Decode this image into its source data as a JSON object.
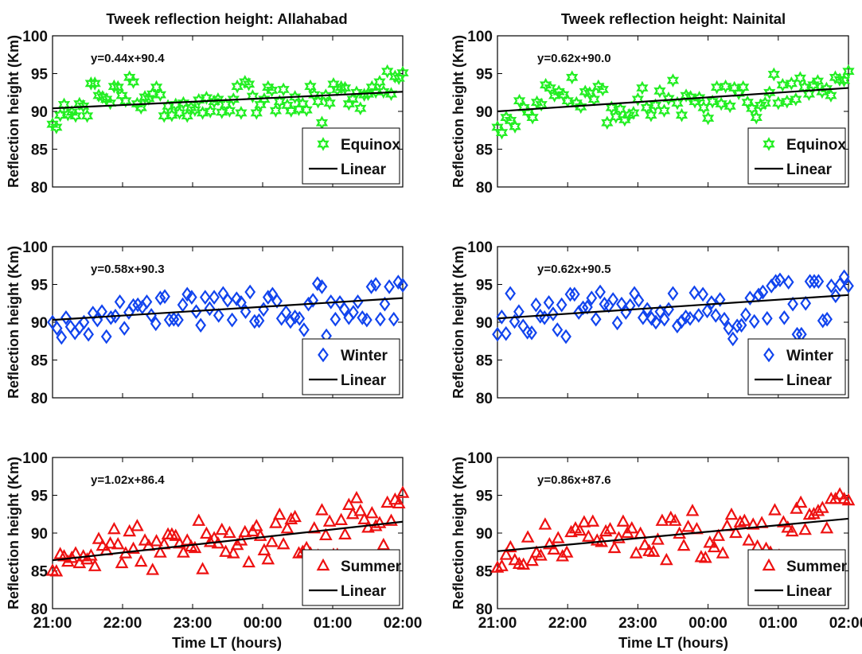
{
  "figure": {
    "titles": {
      "left": "Tweek reflection height: Allahabad",
      "right": "Tweek reflection height: Nainital"
    },
    "ylabel": "Reflection height (Km)",
    "xlabel": "Time LT (hours)",
    "x_tick_labels": [
      "21:00",
      "22:00",
      "23:00",
      "00:00",
      "01:00",
      "02:00"
    ],
    "y_tick_labels": [
      "80",
      "85",
      "90",
      "95",
      "100"
    ],
    "legend_fit_label": "Linear"
  },
  "chart_data": [
    {
      "type": "scatter",
      "title": "Tweek reflection height: Allahabad",
      "legend": "Equinox",
      "marker": "hexagram",
      "color": "#22ee22",
      "equation": "y=0.44x+90.4",
      "fit": {
        "slope": 0.44,
        "intercept": 90.4
      },
      "xlim": [
        0,
        5
      ],
      "ylim": [
        80,
        100
      ],
      "x_tick_labels": [
        "21:00",
        "22:00",
        "23:00",
        "00:00",
        "01:00",
        "02:00"
      ],
      "xlabel": "",
      "ylabel": "Reflection height (Km)",
      "legend_position": "bottom-right",
      "grid": false,
      "y": [
        88.3,
        87.9,
        89.5,
        90.9,
        89.6,
        89.9,
        89.4,
        91.0,
        90.7,
        89.4,
        93.7,
        93.7,
        92.1,
        91.9,
        91.6,
        91.1,
        93.3,
        93.2,
        92.1,
        91.4,
        94.5,
        93.9,
        91.0,
        90.5,
        91.9,
        91.7,
        92.3,
        93.2,
        92.2,
        89.4,
        90.7,
        89.5,
        90.9,
        89.8,
        91.1,
        89.4,
        90.5,
        90.2,
        91.5,
        89.8,
        91.8,
        90.0,
        91.3,
        91.6,
        89.9,
        90.9,
        90.1,
        91.6,
        93.3,
        89.8,
        93.9,
        93.6,
        92.0,
        89.8,
        90.9,
        91.6,
        93.2,
        92.8,
        90.1,
        91.3,
        92.9,
        90.8,
        90.1,
        91.9,
        90.3,
        91.0,
        90.2,
        93.3,
        92.2,
        91.3,
        88.5,
        92.1,
        91.1,
        93.6,
        92.9,
        93.2,
        93.1,
        91.0,
        91.6,
        92.5,
        90.4,
        92.2,
        92.3,
        93.2,
        92.6,
        93.9,
        92.6,
        95.3,
        92.3,
        94.6,
        94.4,
        95.1
      ]
    },
    {
      "type": "scatter",
      "title": "Tweek reflection height: Nainital",
      "legend": "Equinox",
      "marker": "hexagram",
      "color": "#22ee22",
      "equation": "y=0.62x+90.0",
      "fit": {
        "slope": 0.62,
        "intercept": 90.0
      },
      "xlim": [
        0,
        5
      ],
      "ylim": [
        80,
        100
      ],
      "x_tick_labels": [
        "21:00",
        "22:00",
        "23:00",
        "00:00",
        "01:00",
        "02:00"
      ],
      "xlabel": "",
      "ylabel": "Reflection height (Km)",
      "legend_position": "bottom-right",
      "grid": false,
      "y": [
        87.9,
        87.2,
        89.2,
        88.8,
        88.0,
        91.4,
        90.5,
        89.9,
        89.2,
        91.2,
        90.9,
        93.5,
        93.1,
        92.1,
        92.6,
        92.2,
        91.4,
        94.5,
        91.1,
        90.6,
        92.6,
        92.4,
        91.6,
        93.3,
        92.9,
        88.5,
        90.5,
        89.3,
        90.3,
        88.9,
        89.5,
        89.8,
        91.6,
        93.1,
        90.5,
        89.5,
        90.8,
        92.7,
        90.1,
        91.7,
        94.1,
        91.1,
        89.5,
        92.1,
        91.9,
        91.3,
        91.8,
        90.5,
        89.1,
        91.3,
        93.2,
        91.0,
        93.3,
        90.7,
        93.1,
        92.4,
        93.2,
        91.2,
        90.4,
        89.2,
        90.8,
        91.1,
        92.5,
        94.9,
        91.1,
        93.5,
        91.3,
        93.7,
        91.6,
        94.4,
        93.2,
        92.3,
        93.5,
        94.0,
        92.6,
        93.0,
        92.1,
        94.5,
        94.2,
        94.1,
        95.3
      ]
    },
    {
      "type": "scatter",
      "title": "",
      "legend": "Winter",
      "marker": "diamond",
      "color": "#1144ee",
      "equation": "y=0.58x+90.3",
      "fit": {
        "slope": 0.58,
        "intercept": 90.3
      },
      "xlim": [
        0,
        5
      ],
      "ylim": [
        80,
        100
      ],
      "x_tick_labels": [
        "21:00",
        "22:00",
        "23:00",
        "00:00",
        "01:00",
        "02:00"
      ],
      "xlabel": "",
      "ylabel": "Reflection height (Km)",
      "legend_position": "bottom-right",
      "grid": false,
      "y": [
        90.0,
        89.2,
        88.0,
        90.6,
        89.4,
        88.6,
        89.3,
        90.0,
        88.4,
        91.2,
        90.3,
        91.4,
        88.1,
        90.6,
        90.8,
        92.7,
        89.2,
        91.3,
        92.2,
        92.3,
        92.0,
        92.7,
        90.9,
        89.8,
        93.2,
        93.4,
        90.3,
        90.4,
        90.3,
        92.3,
        93.7,
        93.3,
        91.4,
        89.6,
        93.3,
        91.8,
        93.3,
        90.9,
        93.8,
        92.9,
        90.3,
        93.1,
        92.6,
        91.4,
        94.0,
        90.1,
        90.2,
        91.7,
        93.3,
        93.7,
        92.8,
        90.5,
        91.3,
        90.1,
        90.7,
        90.5,
        89.0,
        92.4,
        92.9,
        95.1,
        94.7,
        88.2,
        92.7,
        90.4,
        92.6,
        91.7,
        90.6,
        91.3,
        92.7,
        90.6,
        90.3,
        94.7,
        95.0,
        90.4,
        92.4,
        94.7,
        90.4,
        95.3,
        94.9
      ]
    },
    {
      "type": "scatter",
      "title": "",
      "legend": "Winter",
      "marker": "diamond",
      "color": "#1144ee",
      "equation": "y=0.62x+90.5",
      "fit": {
        "slope": 0.62,
        "intercept": 90.5
      },
      "xlim": [
        0,
        5
      ],
      "ylim": [
        80,
        100
      ],
      "x_tick_labels": [
        "21:00",
        "22:00",
        "23:00",
        "00:00",
        "01:00",
        "02:00"
      ],
      "xlabel": "",
      "ylabel": "Reflection height (Km)",
      "legend_position": "bottom-right",
      "grid": false,
      "y": [
        88.4,
        90.7,
        88.5,
        93.8,
        90.1,
        91.4,
        89.5,
        88.7,
        88.6,
        92.3,
        90.8,
        90.6,
        92.6,
        91.1,
        89.0,
        92.3,
        88.1,
        93.7,
        93.7,
        91.3,
        91.9,
        92.0,
        93.2,
        90.4,
        94.0,
        92.4,
        92.2,
        93.0,
        89.9,
        92.4,
        91.3,
        92.2,
        93.8,
        92.9,
        90.6,
        91.7,
        90.5,
        90.0,
        91.4,
        90.4,
        91.7,
        93.8,
        89.5,
        90.1,
        90.7,
        90.5,
        93.9,
        90.9,
        93.7,
        91.5,
        92.6,
        90.9,
        93.0,
        90.4,
        89.2,
        87.8,
        89.5,
        89.6,
        91.0,
        93.2,
        90.1,
        93.6,
        94.0,
        90.5,
        94.8,
        95.4,
        95.6,
        90.6,
        95.3,
        92.4,
        88.4,
        88.4,
        92.5,
        95.4,
        95.4,
        95.4,
        90.2,
        90.4,
        94.8,
        93.5,
        95.0,
        96.0,
        94.8
      ]
    },
    {
      "type": "scatter",
      "title": "",
      "legend": "Summer",
      "marker": "triangle",
      "color": "#ee1111",
      "equation": "y=1.02x+86.4",
      "fit": {
        "slope": 1.02,
        "intercept": 86.4
      },
      "xlim": [
        0,
        5
      ],
      "ylim": [
        80,
        100
      ],
      "x_tick_labels": [
        "21:00",
        "22:00",
        "23:00",
        "00:00",
        "01:00",
        "02:00"
      ],
      "xlabel": "Time LT (hours)",
      "ylabel": "Reflection height (Km)",
      "legend_position": "bottom-right",
      "grid": false,
      "y": [
        85.0,
        84.9,
        87.2,
        86.9,
        86.2,
        86.7,
        87.3,
        86.0,
        86.9,
        86.5,
        87.0,
        85.6,
        89.2,
        88.3,
        87.7,
        88.6,
        90.5,
        88.5,
        86.0,
        87.3,
        90.2,
        87.9,
        90.9,
        86.2,
        89.0,
        88.3,
        85.1,
        88.9,
        87.4,
        88.5,
        89.8,
        89.8,
        89.6,
        88.6,
        87.4,
        89.0,
        88.2,
        88.0,
        91.6,
        85.2,
        89.9,
        88.8,
        89.3,
        88.6,
        90.4,
        87.5,
        90.0,
        87.3,
        88.4,
        89.0,
        90.1,
        86.1,
        90.2,
        90.9,
        89.6,
        87.7,
        86.5,
        88.8,
        91.3,
        92.4,
        88.5,
        90.6,
        91.8,
        92.1,
        87.3,
        87.5,
        88.0,
        87.3,
        90.6,
        87.0,
        93.0,
        89.7,
        91.5,
        87.1,
        87.1,
        91.7,
        89.8,
        93.7,
        92.5,
        94.6,
        92.9,
        91.8,
        90.7,
        92.6,
        90.9,
        91.3,
        88.4,
        94.0,
        91.6,
        94.4,
        93.9,
        95.3
      ]
    },
    {
      "type": "scatter",
      "title": "",
      "legend": "Summer",
      "marker": "triangle",
      "color": "#ee1111",
      "equation": "y=0.86x+87.6",
      "fit": {
        "slope": 0.86,
        "intercept": 87.6
      },
      "xlim": [
        0,
        5
      ],
      "ylim": [
        80,
        100
      ],
      "x_tick_labels": [
        "21:00",
        "22:00",
        "23:00",
        "00:00",
        "01:00",
        "02:00"
      ],
      "xlabel": "Time LT (hours)",
      "ylabel": "Reflection height (Km)",
      "legend_position": "bottom-right",
      "grid": false,
      "y": [
        85.4,
        85.6,
        87.1,
        88.1,
        86.4,
        85.9,
        85.8,
        89.4,
        86.3,
        87.4,
        87.0,
        91.1,
        88.5,
        87.8,
        89.3,
        86.9,
        87.4,
        90.1,
        90.6,
        90.3,
        91.4,
        89.5,
        91.5,
        89.0,
        88.8,
        90.2,
        90.5,
        88.0,
        89.3,
        91.5,
        90.0,
        90.6,
        87.3,
        89.9,
        88.4,
        87.6,
        87.5,
        89.1,
        91.6,
        86.4,
        92.0,
        91.6,
        89.9,
        88.3,
        90.8,
        92.9,
        90.5,
        86.8,
        86.7,
        88.7,
        88.1,
        89.6,
        87.3,
        90.9,
        92.4,
        90.0,
        91.4,
        91.6,
        89.0,
        91.1,
        88.2,
        91.3,
        87.9,
        87.4,
        93.0,
        87.0,
        91.4,
        90.7,
        90.2,
        93.2,
        94.0,
        90.4,
        92.4,
        92.5,
        92.9,
        93.3,
        90.6,
        94.5,
        94.5,
        95.1,
        94.5,
        94.3
      ]
    }
  ]
}
